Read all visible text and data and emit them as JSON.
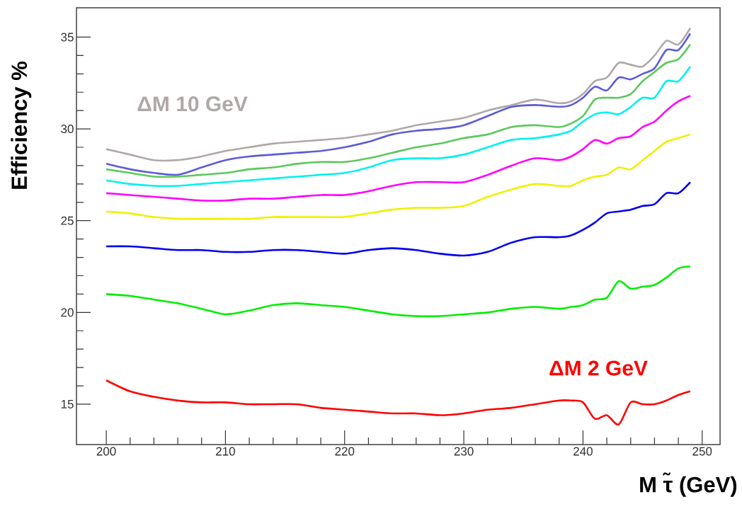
{
  "chart_data": {
    "type": "line",
    "xlabel": "M τ̃ (GeV)",
    "ylabel": "Efficiency %",
    "x": [
      200,
      202,
      204,
      206,
      208,
      210,
      212,
      214,
      216,
      218,
      220,
      222,
      224,
      226,
      228,
      230,
      232,
      234,
      236,
      238,
      239,
      240,
      241,
      242,
      243,
      244,
      245,
      246,
      247,
      248,
      249
    ],
    "xlim": [
      197.5,
      251.5
    ],
    "ylim": [
      12.8,
      36.6
    ],
    "xticks": [
      200,
      210,
      220,
      230,
      240,
      250
    ],
    "yticks": [
      15,
      20,
      25,
      30,
      35
    ],
    "series": [
      {
        "name": "ΔM 10 GeV",
        "color": "#b0a8a8",
        "values": [
          28.9,
          28.6,
          28.3,
          28.3,
          28.5,
          28.8,
          29.0,
          29.2,
          29.3,
          29.4,
          29.5,
          29.7,
          29.9,
          30.2,
          30.4,
          30.6,
          31.0,
          31.3,
          31.6,
          31.4,
          31.5,
          31.9,
          32.6,
          32.8,
          33.6,
          33.5,
          33.4,
          34.0,
          34.8,
          34.6,
          35.5
        ]
      },
      {
        "color": "#5c5cd6",
        "values": [
          28.1,
          27.8,
          27.6,
          27.5,
          27.9,
          28.3,
          28.5,
          28.6,
          28.7,
          28.8,
          29.0,
          29.3,
          29.7,
          29.9,
          30.0,
          30.2,
          30.7,
          31.2,
          31.3,
          31.2,
          31.3,
          31.7,
          32.3,
          32.1,
          32.8,
          32.7,
          33.0,
          33.3,
          34.3,
          34.3,
          35.2
        ]
      },
      {
        "color": "#5cc85c",
        "values": [
          27.8,
          27.6,
          27.4,
          27.4,
          27.5,
          27.6,
          27.8,
          27.9,
          28.1,
          28.2,
          28.2,
          28.4,
          28.7,
          29.0,
          29.2,
          29.5,
          29.7,
          30.1,
          30.2,
          30.1,
          30.3,
          30.7,
          31.6,
          31.7,
          31.7,
          31.9,
          32.6,
          33.1,
          33.6,
          33.8,
          34.6
        ]
      },
      {
        "color": "#00f0f0",
        "values": [
          27.2,
          27.0,
          26.9,
          26.9,
          27.0,
          27.1,
          27.2,
          27.3,
          27.4,
          27.5,
          27.6,
          27.9,
          28.3,
          28.4,
          28.4,
          28.6,
          29.0,
          29.4,
          29.5,
          29.7,
          29.9,
          30.4,
          30.8,
          30.9,
          30.8,
          31.2,
          31.7,
          31.7,
          32.6,
          32.6,
          33.4
        ]
      },
      {
        "color": "#ff00ff",
        "values": [
          26.5,
          26.4,
          26.3,
          26.2,
          26.1,
          26.1,
          26.2,
          26.2,
          26.3,
          26.4,
          26.4,
          26.6,
          26.9,
          27.1,
          27.1,
          27.1,
          27.5,
          28.0,
          28.4,
          28.3,
          28.5,
          28.9,
          29.4,
          29.2,
          29.5,
          29.6,
          30.1,
          30.4,
          31.0,
          31.5,
          31.8
        ]
      },
      {
        "color": "#f0f000",
        "values": [
          25.5,
          25.4,
          25.2,
          25.1,
          25.1,
          25.1,
          25.1,
          25.2,
          25.2,
          25.2,
          25.2,
          25.4,
          25.6,
          25.7,
          25.7,
          25.8,
          26.3,
          26.7,
          27.0,
          26.9,
          26.9,
          27.2,
          27.4,
          27.5,
          27.9,
          27.8,
          28.3,
          28.8,
          29.3,
          29.5,
          29.7
        ]
      },
      {
        "color": "#0000ee",
        "values": [
          23.6,
          23.6,
          23.5,
          23.4,
          23.4,
          23.3,
          23.3,
          23.4,
          23.4,
          23.3,
          23.2,
          23.4,
          23.5,
          23.4,
          23.2,
          23.1,
          23.3,
          23.8,
          24.1,
          24.1,
          24.2,
          24.5,
          24.9,
          25.4,
          25.5,
          25.6,
          25.8,
          25.9,
          26.5,
          26.5,
          27.1
        ]
      },
      {
        "color": "#00ee00",
        "values": [
          21.0,
          20.9,
          20.7,
          20.5,
          20.2,
          19.9,
          20.1,
          20.4,
          20.5,
          20.4,
          20.3,
          20.1,
          19.9,
          19.8,
          19.8,
          19.9,
          20.0,
          20.2,
          20.3,
          20.2,
          20.3,
          20.4,
          20.7,
          20.8,
          21.7,
          21.3,
          21.4,
          21.5,
          21.9,
          22.4,
          22.5
        ]
      },
      {
        "name": "ΔM 2 GeV",
        "color": "#ff0000",
        "values": [
          16.3,
          15.7,
          15.4,
          15.2,
          15.1,
          15.1,
          15.0,
          15.0,
          15.0,
          14.8,
          14.7,
          14.6,
          14.5,
          14.5,
          14.4,
          14.5,
          14.7,
          14.8,
          15.0,
          15.2,
          15.2,
          15.1,
          14.2,
          14.4,
          13.9,
          15.1,
          15.0,
          15.0,
          15.2,
          15.5,
          15.7
        ]
      }
    ]
  }
}
